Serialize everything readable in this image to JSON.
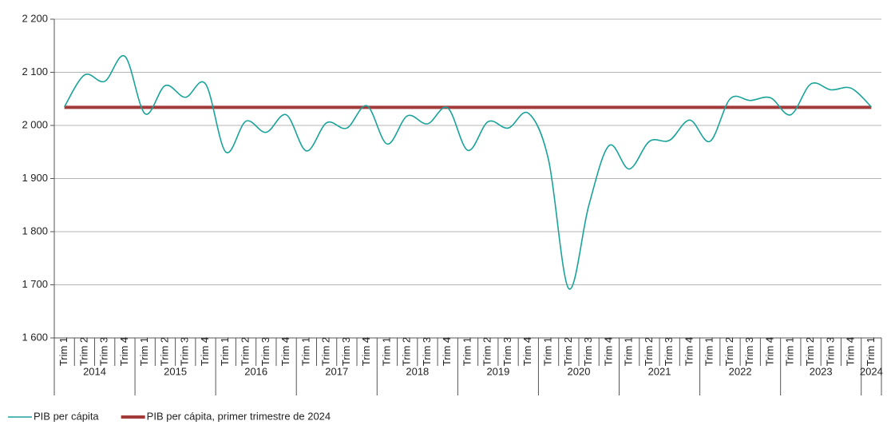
{
  "chart_data": {
    "type": "line",
    "categories": [
      "Trim 1",
      "Trim 2",
      "Trim 3",
      "Trim 4",
      "Trim 1",
      "Trim 2",
      "Trim 3",
      "Trim 4",
      "Trim 1",
      "Trim 2",
      "Trim 3",
      "Trim 4",
      "Trim 1",
      "Trim 2",
      "Trim 3",
      "Trim 4",
      "Trim 1",
      "Trim 2",
      "Trim 3",
      "Trim 4",
      "Trim 1",
      "Trim 2",
      "Trim 3",
      "Trim 4",
      "Trim 1",
      "Trim 2",
      "Trim 3",
      "Trim 4",
      "Trim 1",
      "Trim 2",
      "Trim 3",
      "Trim 4",
      "Trim 1",
      "Trim 2",
      "Trim 3",
      "Trim 4",
      "Trim 1",
      "Trim 2",
      "Trim 3",
      "Trim 4",
      "Trim 1"
    ],
    "years": [
      "2014",
      "2015",
      "2016",
      "2017",
      "2018",
      "2019",
      "2020",
      "2021",
      "2022",
      "2023",
      "2024"
    ],
    "series": [
      {
        "name": "PIB per cápita",
        "color": "#1aa39a",
        "smooth": true,
        "values": [
          2035,
          2095,
          2083,
          2130,
          2022,
          2075,
          2053,
          2078,
          1950,
          2008,
          1987,
          2020,
          1952,
          2005,
          1995,
          2037,
          1965,
          2018,
          2003,
          2033,
          1953,
          2007,
          1995,
          2023,
          1935,
          1693,
          1850,
          1962,
          1918,
          1970,
          1972,
          2010,
          1970,
          2050,
          2047,
          2052,
          2020,
          2078,
          2067,
          2070,
          2035
        ]
      },
      {
        "name": "PIB per cápita, primer trimestre de 2024",
        "color": "#a33a3a",
        "smooth": false,
        "values": [
          2034,
          2034,
          2034,
          2034,
          2034,
          2034,
          2034,
          2034,
          2034,
          2034,
          2034,
          2034,
          2034,
          2034,
          2034,
          2034,
          2034,
          2034,
          2034,
          2034,
          2034,
          2034,
          2034,
          2034,
          2034,
          2034,
          2034,
          2034,
          2034,
          2034,
          2034,
          2034,
          2034,
          2034,
          2034,
          2034,
          2034,
          2034,
          2034,
          2034,
          2034
        ]
      }
    ],
    "ylim": [
      1600,
      2200
    ],
    "yticks": [
      {
        "value": 1600,
        "label": "1 600"
      },
      {
        "value": 1700,
        "label": "1 700"
      },
      {
        "value": 1800,
        "label": "1 800"
      },
      {
        "value": 1900,
        "label": "1 900"
      },
      {
        "value": 2000,
        "label": "2 000"
      },
      {
        "value": 2100,
        "label": "2 100"
      },
      {
        "value": 2200,
        "label": "2 200"
      }
    ],
    "grid": true,
    "legend": "bottom-left"
  }
}
